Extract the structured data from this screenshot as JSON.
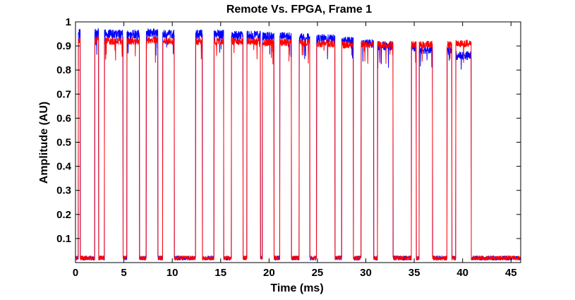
{
  "chart_data": {
    "type": "line",
    "title": "Remote Vs. FPGA, Frame 1",
    "xlabel": "Time (ms)",
    "ylabel": "Amplitude (AU)",
    "xlim": [
      0,
      46
    ],
    "ylim": [
      0,
      1
    ],
    "x_ticks": [
      0,
      5,
      10,
      15,
      20,
      25,
      30,
      35,
      40,
      45
    ],
    "x_tick_labels": [
      "0",
      "5",
      "10",
      "15",
      "20",
      "25",
      "30",
      "35",
      "40",
      "45"
    ],
    "y_ticks": [
      0.1,
      0.2,
      0.3,
      0.4,
      0.5,
      0.6,
      0.7,
      0.8,
      0.9,
      1
    ],
    "y_tick_labels": [
      "0.1",
      "0.2",
      "0.3",
      "0.4",
      "0.5",
      "0.6",
      "0.7",
      "0.8",
      "0.9",
      "1"
    ],
    "grid": false,
    "legend": "none",
    "low_level": 0.01,
    "series": [
      {
        "color": "#0000ff",
        "high_segments": [
          {
            "start": 0.3,
            "end": 0.5,
            "level": 0.955
          },
          {
            "start": 2.0,
            "end": 2.4,
            "level": 0.955
          },
          {
            "start": 3.0,
            "end": 4.9,
            "level": 0.95
          },
          {
            "start": 5.3,
            "end": 6.6,
            "level": 0.95
          },
          {
            "start": 7.3,
            "end": 8.5,
            "level": 0.955
          },
          {
            "start": 9.0,
            "end": 10.2,
            "level": 0.95
          },
          {
            "start": 12.4,
            "end": 13.1,
            "level": 0.95
          },
          {
            "start": 14.3,
            "end": 15.3,
            "level": 0.95
          },
          {
            "start": 16.1,
            "end": 17.3,
            "level": 0.945
          },
          {
            "start": 17.7,
            "end": 19.1,
            "level": 0.945
          },
          {
            "start": 19.3,
            "end": 20.5,
            "level": 0.94
          },
          {
            "start": 21.1,
            "end": 22.3,
            "level": 0.94
          },
          {
            "start": 23.1,
            "end": 24.2,
            "level": 0.935
          },
          {
            "start": 24.9,
            "end": 26.8,
            "level": 0.93
          },
          {
            "start": 27.5,
            "end": 28.7,
            "level": 0.92
          },
          {
            "start": 29.5,
            "end": 30.8,
            "level": 0.91
          },
          {
            "start": 31.2,
            "end": 32.8,
            "level": 0.9
          },
          {
            "start": 34.7,
            "end": 35.2,
            "level": 0.895
          },
          {
            "start": 35.5,
            "end": 36.9,
            "level": 0.885
          },
          {
            "start": 38.4,
            "end": 38.9,
            "level": 0.88
          },
          {
            "start": 39.3,
            "end": 40.9,
            "level": 0.86
          }
        ]
      },
      {
        "color": "#ff0000",
        "high_segments": [
          {
            "start": 0.3,
            "end": 0.5,
            "level": 0.925
          },
          {
            "start": 2.0,
            "end": 2.4,
            "level": 0.925
          },
          {
            "start": 3.0,
            "end": 4.9,
            "level": 0.92
          },
          {
            "start": 5.3,
            "end": 6.6,
            "level": 0.92
          },
          {
            "start": 7.3,
            "end": 8.5,
            "level": 0.925
          },
          {
            "start": 9.0,
            "end": 10.2,
            "level": 0.92
          },
          {
            "start": 12.4,
            "end": 13.1,
            "level": 0.92
          },
          {
            "start": 14.3,
            "end": 15.3,
            "level": 0.92
          },
          {
            "start": 16.1,
            "end": 17.3,
            "level": 0.92
          },
          {
            "start": 17.7,
            "end": 19.1,
            "level": 0.92
          },
          {
            "start": 19.3,
            "end": 20.5,
            "level": 0.915
          },
          {
            "start": 21.1,
            "end": 22.3,
            "level": 0.915
          },
          {
            "start": 23.1,
            "end": 24.2,
            "level": 0.915
          },
          {
            "start": 24.9,
            "end": 26.8,
            "level": 0.91
          },
          {
            "start": 27.5,
            "end": 28.7,
            "level": 0.905
          },
          {
            "start": 29.5,
            "end": 30.8,
            "level": 0.905
          },
          {
            "start": 31.2,
            "end": 32.8,
            "level": 0.905
          },
          {
            "start": 34.7,
            "end": 35.2,
            "level": 0.905
          },
          {
            "start": 35.5,
            "end": 36.9,
            "level": 0.905
          },
          {
            "start": 38.4,
            "end": 38.9,
            "level": 0.905
          },
          {
            "start": 39.3,
            "end": 40.9,
            "level": 0.91
          }
        ]
      }
    ]
  }
}
